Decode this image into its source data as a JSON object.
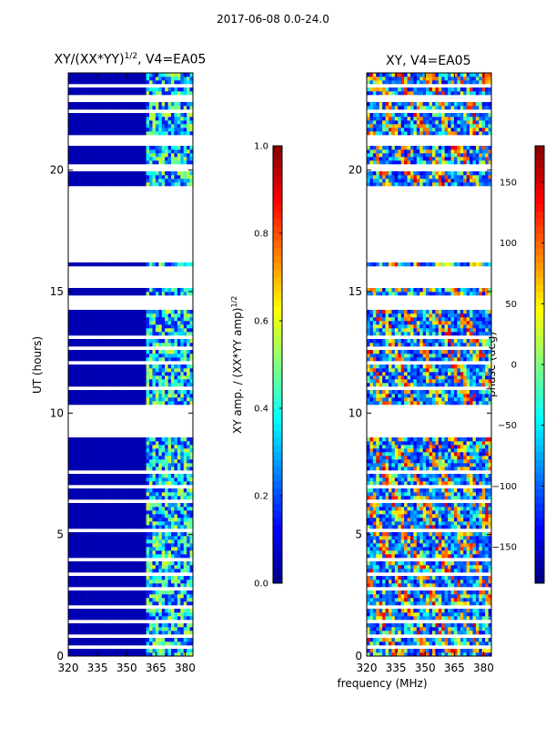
{
  "header": {
    "suptitle": "2017-06-08 0.0-24.0"
  },
  "chart_data": [
    {
      "type": "heatmap",
      "title": "XY/(XX*YY)",
      "title_exponent": "1/2",
      "title_suffix": ", V4=EA05",
      "xlabel": "",
      "ylabel": "UT (hours)",
      "xlim": [
        320,
        384
      ],
      "ylim": [
        0,
        24
      ],
      "x_ticks": [
        320,
        335,
        350,
        365,
        380
      ],
      "y_ticks": [
        0,
        5,
        10,
        15,
        20
      ],
      "colorbar": {
        "label": "XY amp. / (XX*YY amp)",
        "label_exponent": "1/2",
        "range": [
          0.0,
          1.0
        ],
        "ticks": [
          "0.0",
          "0.2",
          "0.4",
          "0.6",
          "0.8",
          "1.0"
        ],
        "colormap": "jet"
      },
      "description_values": {
        "low_band_level": 0.05,
        "high_band_start_mhz": 360,
        "high_band_level_range": [
          0.2,
          0.6
        ]
      }
    },
    {
      "type": "heatmap",
      "title": "XY, V4=EA05",
      "xlabel": "frequency (MHz)",
      "ylabel": "",
      "xlim": [
        320,
        384
      ],
      "ylim": [
        0,
        24
      ],
      "x_ticks": [
        320,
        335,
        350,
        365,
        380
      ],
      "y_ticks": [
        0,
        5,
        10,
        15,
        20
      ],
      "colorbar": {
        "label": "phase (deg)",
        "range": [
          -180,
          180
        ],
        "ticks": [
          "-150",
          "-100",
          "-50",
          "0",
          "50",
          "100",
          "150"
        ],
        "colormap": "jet"
      }
    }
  ],
  "data_gaps_hours": [
    [
      9.0,
      10.3
    ],
    [
      14.3,
      14.8
    ],
    [
      15.2,
      16.0
    ],
    [
      16.2,
      19.3
    ],
    [
      21.0,
      21.4
    ],
    [
      22.3,
      22.5
    ],
    [
      22.8,
      22.9
    ],
    [
      23.4,
      23.5
    ],
    [
      20.0,
      20.2
    ],
    [
      23.0,
      23.1
    ],
    [
      13.1,
      13.25
    ],
    [
      12.6,
      12.7
    ],
    [
      12.0,
      12.1
    ],
    [
      11.0,
      11.1
    ],
    [
      8.2,
      8.3
    ],
    [
      7.5,
      7.6
    ],
    [
      6.9,
      7.0
    ],
    [
      6.3,
      6.4
    ],
    [
      5.8,
      5.9
    ],
    [
      5.1,
      5.2
    ],
    [
      4.6,
      4.7
    ],
    [
      3.9,
      4.0
    ],
    [
      3.3,
      3.4
    ],
    [
      2.7,
      2.8
    ],
    [
      2.0,
      2.1
    ],
    [
      1.4,
      1.5
    ],
    [
      0.8,
      0.9
    ],
    [
      0.3,
      0.4
    ],
    [
      10.6,
      10.7
    ],
    [
      13.6,
      13.7
    ]
  ]
}
